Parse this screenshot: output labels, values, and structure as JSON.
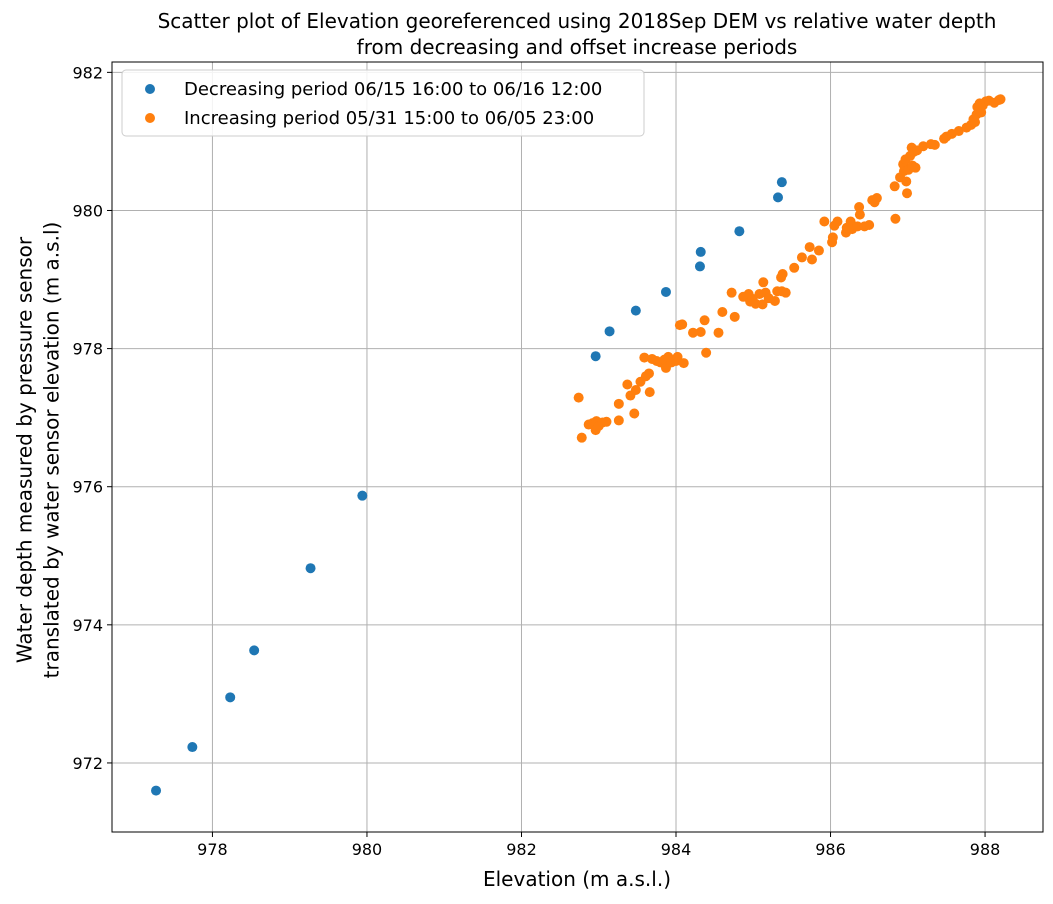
{
  "chart_data": {
    "type": "scatter",
    "title": "Scatter plot of Elevation georeferenced using 2018Sep DEM vs relative water depth",
    "subtitle": "from decreasing and offset increase periods",
    "xlabel": "Elevation (m a.s.l.)",
    "ylabel_line1": "Water depth measured by pressure sensor",
    "ylabel_line2": "translated by water sensor elevation (m a.s.l)",
    "xlim": [
      976.7,
      988.75
    ],
    "ylim": [
      971.0,
      982.15
    ],
    "xticks": [
      978,
      980,
      982,
      984,
      986,
      988
    ],
    "yticks": [
      972,
      974,
      976,
      978,
      980,
      982
    ],
    "xtick_labels": [
      "978",
      "980",
      "982",
      "984",
      "986",
      "988"
    ],
    "ytick_labels": [
      "972",
      "974",
      "976",
      "978",
      "980",
      "982"
    ],
    "grid": true,
    "legend_position": "top-left",
    "series": [
      {
        "name": "Decreasing period 06/15 16:00 to 06/16 12:00",
        "color": "#1f77b4",
        "points": [
          [
            977.27,
            971.6
          ],
          [
            977.74,
            972.23
          ],
          [
            978.23,
            972.95
          ],
          [
            978.54,
            973.63
          ],
          [
            979.27,
            974.82
          ],
          [
            979.94,
            975.87
          ],
          [
            982.96,
            977.89
          ],
          [
            983.14,
            978.25
          ],
          [
            983.48,
            978.55
          ],
          [
            983.87,
            978.82
          ],
          [
            984.31,
            979.19
          ],
          [
            984.32,
            979.4
          ],
          [
            984.82,
            979.7
          ],
          [
            985.32,
            980.19
          ],
          [
            985.37,
            980.41
          ]
        ]
      },
      {
        "name": "Increasing period 05/31 15:00 to 06/05 23:00",
        "color": "#ff7f0e",
        "points": [
          [
            982.74,
            977.29
          ],
          [
            982.78,
            976.71
          ],
          [
            982.87,
            976.9
          ],
          [
            982.92,
            976.92
          ],
          [
            982.96,
            976.82
          ],
          [
            982.97,
            976.95
          ],
          [
            983.0,
            976.88
          ],
          [
            983.05,
            976.93
          ],
          [
            983.1,
            976.94
          ],
          [
            983.26,
            976.96
          ],
          [
            983.26,
            977.2
          ],
          [
            983.37,
            977.48
          ],
          [
            983.41,
            977.32
          ],
          [
            983.46,
            977.06
          ],
          [
            983.48,
            977.4
          ],
          [
            983.54,
            977.52
          ],
          [
            983.59,
            977.87
          ],
          [
            983.61,
            977.6
          ],
          [
            983.65,
            977.64
          ],
          [
            983.66,
            977.37
          ],
          [
            983.69,
            977.85
          ],
          [
            983.75,
            977.82
          ],
          [
            983.8,
            977.8
          ],
          [
            983.85,
            977.84
          ],
          [
            983.87,
            977.72
          ],
          [
            983.9,
            977.88
          ],
          [
            983.94,
            977.8
          ],
          [
            984.0,
            977.82
          ],
          [
            984.02,
            977.88
          ],
          [
            984.05,
            978.34
          ],
          [
            984.08,
            978.35
          ],
          [
            984.1,
            977.79
          ],
          [
            984.22,
            978.23
          ],
          [
            984.32,
            978.24
          ],
          [
            984.37,
            978.41
          ],
          [
            984.39,
            977.94
          ],
          [
            984.55,
            978.23
          ],
          [
            984.6,
            978.53
          ],
          [
            984.72,
            978.81
          ],
          [
            984.76,
            978.46
          ],
          [
            984.87,
            978.75
          ],
          [
            984.94,
            978.79
          ],
          [
            984.96,
            978.68
          ],
          [
            984.99,
            978.72
          ],
          [
            985.03,
            978.65
          ],
          [
            985.08,
            978.79
          ],
          [
            985.12,
            978.64
          ],
          [
            985.13,
            978.96
          ],
          [
            985.16,
            978.81
          ],
          [
            985.2,
            978.73
          ],
          [
            985.28,
            978.69
          ],
          [
            985.31,
            978.83
          ],
          [
            985.36,
            979.03
          ],
          [
            985.37,
            978.83
          ],
          [
            985.38,
            979.08
          ],
          [
            985.42,
            978.81
          ],
          [
            985.53,
            979.17
          ],
          [
            985.63,
            979.32
          ],
          [
            985.73,
            979.47
          ],
          [
            985.76,
            979.29
          ],
          [
            985.85,
            979.42
          ],
          [
            985.92,
            979.84
          ],
          [
            986.02,
            979.54
          ],
          [
            986.03,
            979.61
          ],
          [
            986.05,
            979.78
          ],
          [
            986.09,
            979.84
          ],
          [
            986.2,
            979.68
          ],
          [
            986.21,
            979.75
          ],
          [
            986.26,
            979.84
          ],
          [
            986.28,
            979.73
          ],
          [
            986.35,
            979.77
          ],
          [
            986.37,
            980.05
          ],
          [
            986.38,
            979.94
          ],
          [
            986.44,
            979.77
          ],
          [
            986.5,
            979.79
          ],
          [
            986.54,
            980.15
          ],
          [
            986.57,
            980.12
          ],
          [
            986.6,
            980.18
          ],
          [
            986.83,
            980.35
          ],
          [
            986.84,
            979.88
          ],
          [
            986.9,
            980.48
          ],
          [
            986.94,
            980.67
          ],
          [
            986.95,
            980.57
          ],
          [
            986.97,
            980.74
          ],
          [
            986.98,
            980.42
          ],
          [
            986.99,
            980.25
          ],
          [
            987.01,
            980.59
          ],
          [
            987.03,
            980.79
          ],
          [
            987.05,
            980.91
          ],
          [
            987.06,
            980.65
          ],
          [
            987.08,
            980.85
          ],
          [
            987.1,
            980.62
          ],
          [
            987.12,
            980.87
          ],
          [
            987.2,
            980.93
          ],
          [
            987.3,
            980.96
          ],
          [
            987.35,
            980.95
          ],
          [
            987.47,
            981.04
          ],
          [
            987.5,
            981.07
          ],
          [
            987.57,
            981.11
          ],
          [
            987.66,
            981.15
          ],
          [
            987.76,
            981.2
          ],
          [
            987.82,
            981.24
          ],
          [
            987.85,
            981.32
          ],
          [
            987.87,
            981.28
          ],
          [
            987.89,
            981.39
          ],
          [
            987.9,
            981.5
          ],
          [
            987.92,
            981.46
          ],
          [
            987.93,
            981.55
          ],
          [
            987.95,
            981.42
          ],
          [
            987.97,
            981.52
          ],
          [
            988.01,
            981.58
          ],
          [
            988.05,
            981.59
          ],
          [
            988.12,
            981.56
          ],
          [
            988.18,
            981.6
          ],
          [
            988.2,
            981.61
          ]
        ]
      }
    ]
  }
}
